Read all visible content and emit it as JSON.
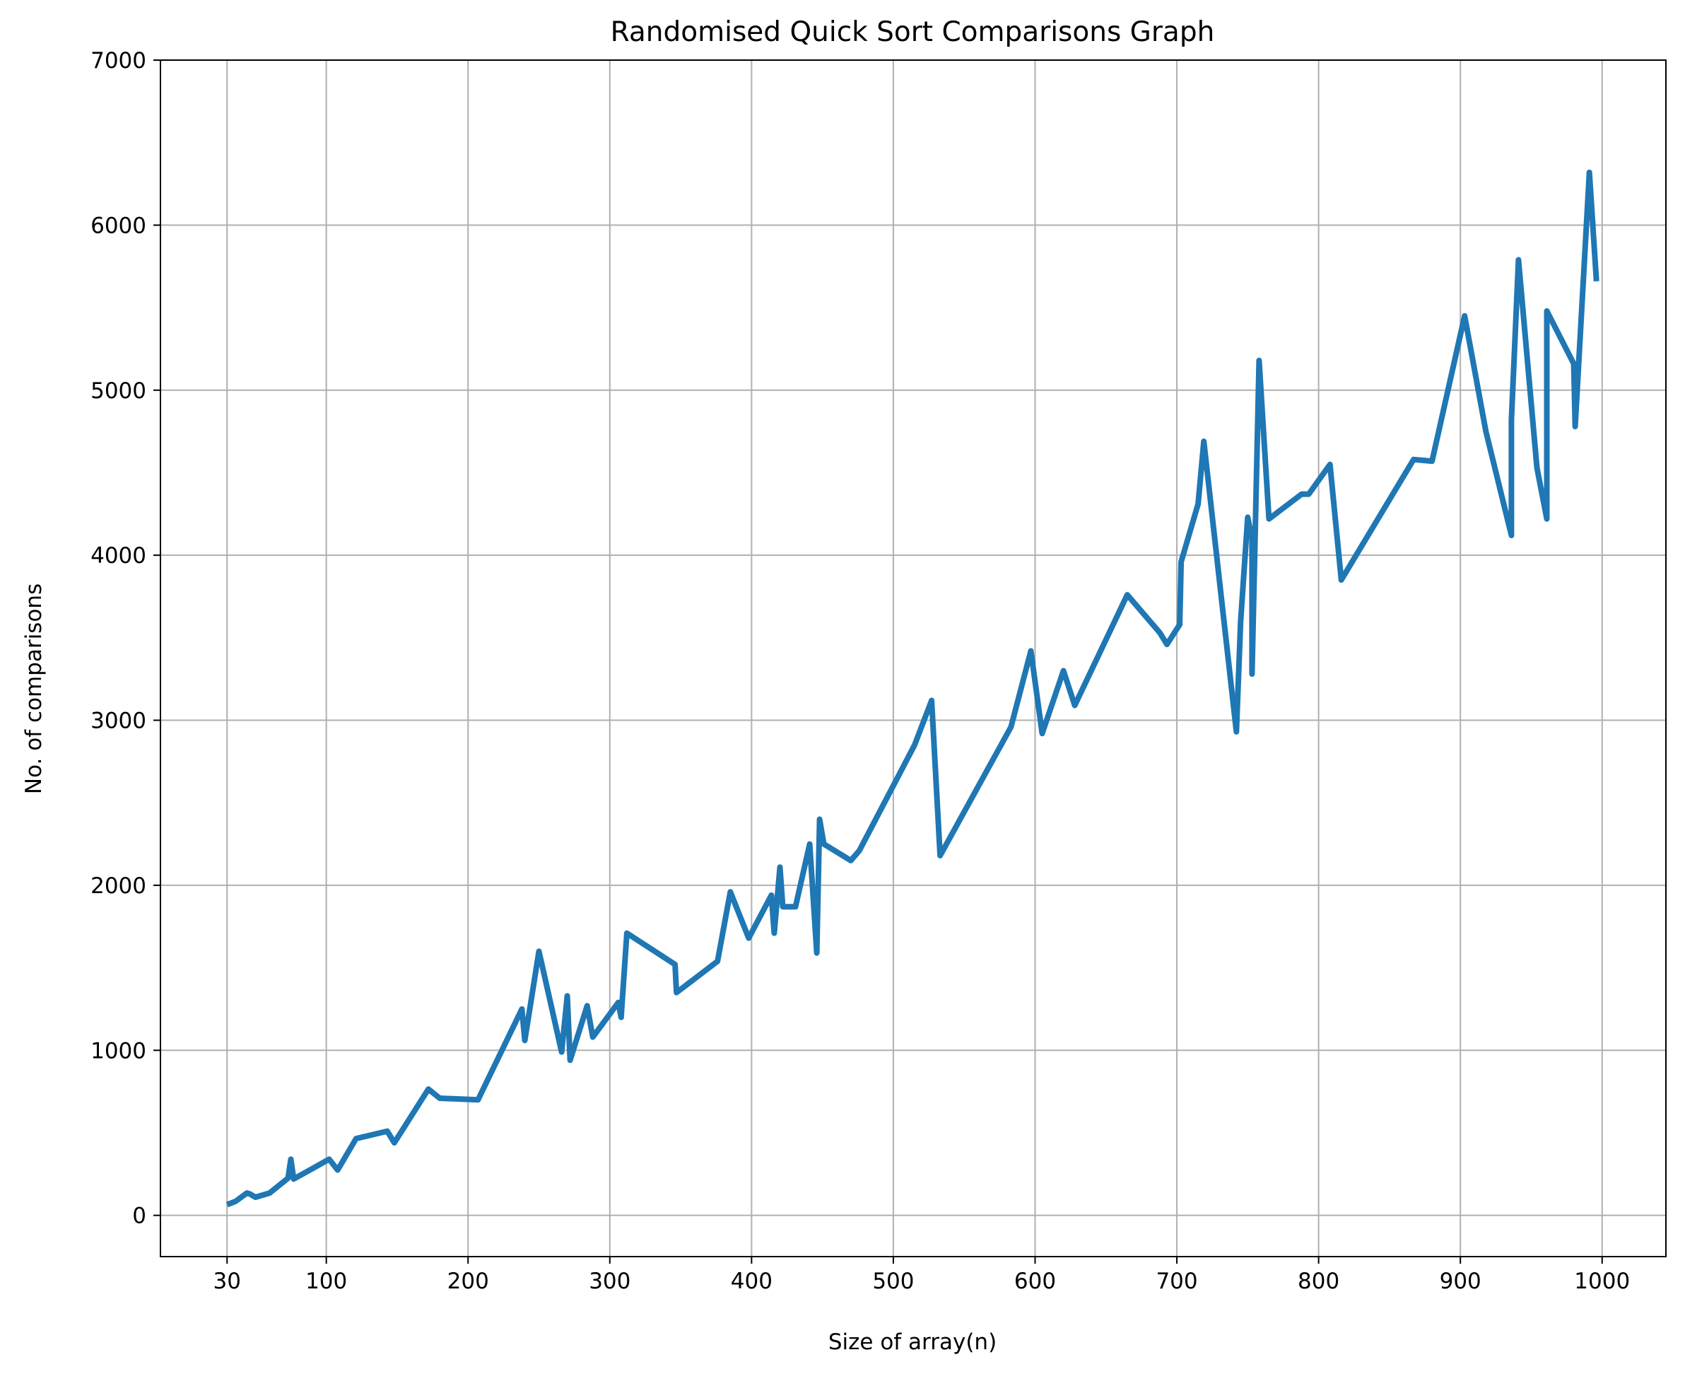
{
  "colors": {
    "line": "#1f77b4",
    "grid": "#b0b0b0",
    "axis": "#000000",
    "background": "#ffffff"
  },
  "chart_data": {
    "type": "line",
    "title": "Randomised Quick Sort Comparisons Graph",
    "xlabel": "Size of array(n)",
    "ylabel": "No. of comparisons",
    "xlim": [
      -17,
      1045
    ],
    "ylim": [
      -250,
      7000
    ],
    "xticks": [
      30,
      100,
      200,
      300,
      400,
      500,
      600,
      700,
      800,
      900,
      1000
    ],
    "yticks": [
      0,
      1000,
      2000,
      3000,
      4000,
      5000,
      6000,
      7000
    ],
    "grid": true,
    "legend": "none",
    "series": [
      {
        "name": "comparisons",
        "x": [
          30,
          36,
          44,
          46,
          50,
          60,
          73,
          75,
          77,
          102,
          108,
          121,
          143,
          148,
          172,
          180,
          207,
          238,
          240,
          250,
          266,
          270,
          272,
          284,
          288,
          306,
          308,
          312,
          346,
          347,
          376,
          385,
          398,
          414,
          416,
          420,
          422,
          431,
          441,
          446,
          448,
          451,
          470,
          476,
          515,
          527,
          533,
          583,
          597,
          605,
          620,
          628,
          665,
          688,
          693,
          702,
          703,
          715,
          719,
          742,
          745,
          750,
          753,
          753,
          758,
          765,
          788,
          793,
          808,
          816,
          867,
          880,
          903,
          918,
          936,
          936,
          941,
          954,
          961,
          961,
          980,
          981,
          991,
          996
        ],
        "y": [
          65,
          85,
          135,
          130,
          110,
          135,
          225,
          340,
          220,
          340,
          275,
          465,
          510,
          440,
          765,
          710,
          700,
          1250,
          1060,
          1600,
          990,
          1330,
          940,
          1270,
          1080,
          1290,
          1200,
          1710,
          1520,
          1350,
          1540,
          1960,
          1680,
          1940,
          1710,
          2110,
          1870,
          1870,
          2250,
          1590,
          2400,
          2250,
          2150,
          2210,
          2850,
          3120,
          2180,
          2960,
          3420,
          2920,
          3300,
          3090,
          3760,
          3530,
          3460,
          3580,
          3960,
          4310,
          4690,
          2930,
          3600,
          4230,
          4100,
          3280,
          5180,
          4220,
          4370,
          4370,
          4550,
          3850,
          4580,
          4570,
          5450,
          4750,
          4120,
          4820,
          5790,
          4530,
          4220,
          5480,
          5160,
          4780,
          6320,
          5660
        ]
      }
    ]
  }
}
